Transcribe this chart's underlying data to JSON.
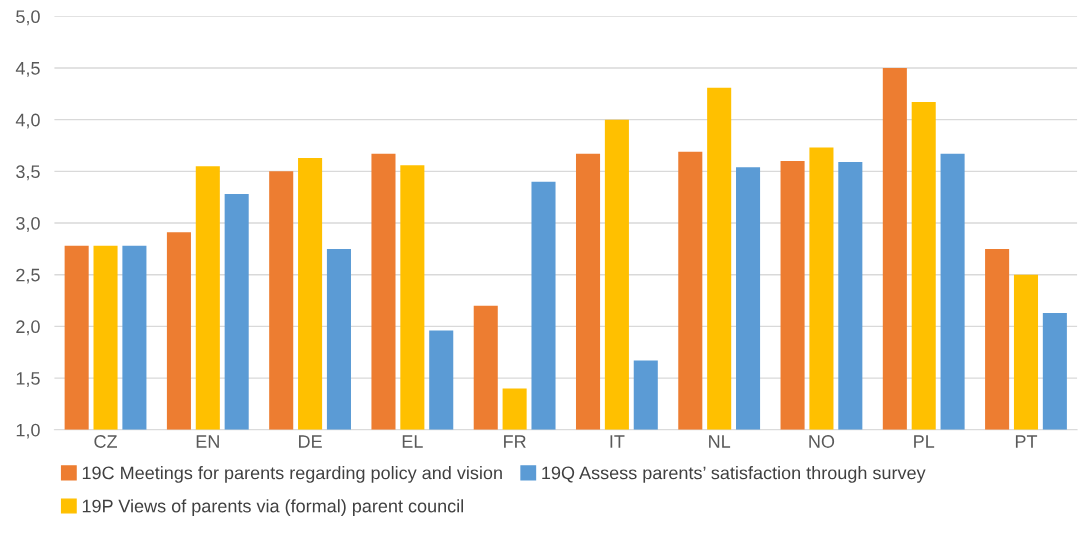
{
  "chart_data": {
    "type": "bar",
    "categories": [
      "CZ",
      "EN",
      "DE",
      "EL",
      "FR",
      "IT",
      "NL",
      "NO",
      "PL",
      "PT"
    ],
    "series": [
      {
        "name": "19C Meetings for parents regarding policy and vision",
        "color": "#ed7d31",
        "values": [
          2.78,
          2.91,
          3.5,
          3.67,
          2.2,
          3.67,
          3.69,
          3.6,
          4.5,
          2.75
        ]
      },
      {
        "name": "19P Views of parents via (formal) parent council",
        "color": "#ffc000",
        "values": [
          2.78,
          3.55,
          3.63,
          3.56,
          1.4,
          4.0,
          4.31,
          3.73,
          4.17,
          2.5
        ]
      },
      {
        "name": "19Q Assess parents’ satisfaction through survey",
        "color": "#5b9bd5",
        "values": [
          2.78,
          3.28,
          2.75,
          1.96,
          3.4,
          1.67,
          3.54,
          3.59,
          3.67,
          2.13
        ]
      }
    ],
    "ylim": [
      1.0,
      5.0
    ],
    "yticks": [
      {
        "value": 1.0,
        "label": "1,0"
      },
      {
        "value": 1.5,
        "label": "1,5"
      },
      {
        "value": 2.0,
        "label": "2,0"
      },
      {
        "value": 2.5,
        "label": "2,5"
      },
      {
        "value": 3.0,
        "label": "3,0"
      },
      {
        "value": 3.5,
        "label": "3,5"
      },
      {
        "value": 4.0,
        "label": "4,0"
      },
      {
        "value": 4.5,
        "label": "4,5"
      },
      {
        "value": 5.0,
        "label": "5,0"
      }
    ],
    "grid": "y",
    "legend": "bottom"
  }
}
